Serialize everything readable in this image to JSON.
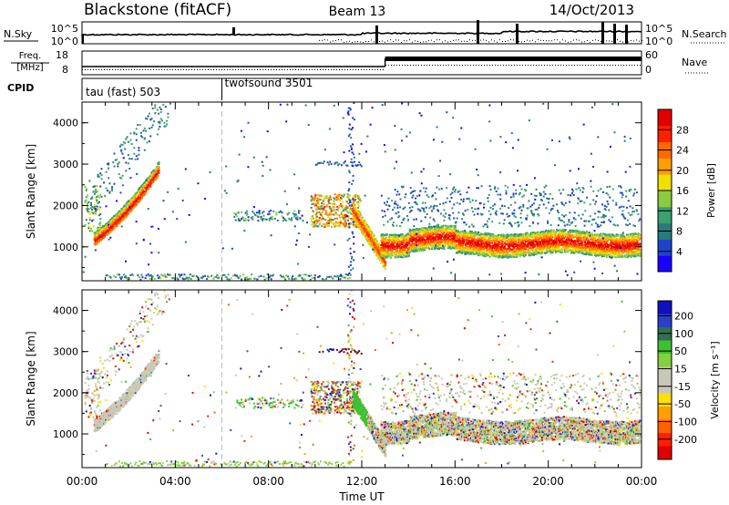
{
  "header": {
    "station": "Blackstone (fitACF)",
    "beam": "Beam 13",
    "date": "14/Oct/2013"
  },
  "summary": {
    "nsky_label": "N.Sky",
    "nsearch_label": "N.Search",
    "freq_label_1": "Freq.",
    "freq_label_2": "[MHz]",
    "nave_label": "Nave",
    "cpid_label": "CPID",
    "count_ticks": [
      "10^5",
      "10^0"
    ],
    "freq_ticks": [
      "18",
      "8"
    ],
    "nave_ticks": [
      "60",
      "0"
    ]
  },
  "cpid_programs": [
    {
      "label": "tau (fast) 503",
      "start_hour": 0
    },
    {
      "label": "twofsound 3501",
      "start_hour": 6
    }
  ],
  "chart_data": [
    {
      "type": "heatmap",
      "name": "power_panel",
      "ylabel": "Slant Range [km]",
      "ylim": [
        180,
        4500
      ],
      "yticks": [
        1000,
        2000,
        3000,
        4000
      ],
      "xlim": [
        0,
        24
      ],
      "colorbar": {
        "label": "Power [dB]",
        "ticks": [
          4,
          8,
          12,
          16,
          20,
          24,
          28
        ],
        "range": [
          0,
          32
        ],
        "colors": [
          "#1b00ff",
          "#1f44c8",
          "#2a7a7a",
          "#3ca070",
          "#8acb40",
          "#f0e000",
          "#ffa000",
          "#ff6a00",
          "#ff2000",
          "#e00000"
        ]
      },
      "features": [
        {
          "desc": "early rising echo band",
          "t": [
            0.5,
            3.3
          ],
          "range": [
            1100,
            2700
          ]
        },
        {
          "desc": "main evening band",
          "t": [
            12.5,
            24.0
          ],
          "range": [
            900,
            1500
          ]
        },
        {
          "desc": "ground band",
          "t": [
            1.0,
            11.5
          ],
          "range": [
            200,
            400
          ]
        },
        {
          "desc": "bursts near 11 UT",
          "t": [
            10.0,
            11.8
          ],
          "range": [
            1500,
            2300
          ]
        },
        {
          "desc": "band near 3000 km",
          "t": [
            10.0,
            12.0
          ],
          "range": [
            2950,
            3100
          ]
        }
      ]
    },
    {
      "type": "heatmap",
      "name": "velocity_panel",
      "ylabel": "Slant Range [km]",
      "ylim": [
        180,
        4500
      ],
      "yticks": [
        1000,
        2000,
        3000,
        4000
      ],
      "xlabel": "Time UT",
      "xticks": [
        "00:00",
        "04:00",
        "08:00",
        "12:00",
        "16:00",
        "20:00",
        "00:00"
      ],
      "xlim": [
        0,
        24
      ],
      "colorbar": {
        "label": "Velocity [m s⁻¹]",
        "ticks": [
          "200",
          "100",
          "50",
          "15",
          "-15",
          "-50",
          "-100",
          "-200"
        ],
        "colors": [
          "#1010c0",
          "#2a40c8",
          "#307050",
          "#40c030",
          "#80d040",
          "#c8c8b8",
          "#c8c8b8",
          "#ffe000",
          "#ffa000",
          "#ff6000",
          "#ff2000",
          "#e00000"
        ]
      }
    }
  ]
}
